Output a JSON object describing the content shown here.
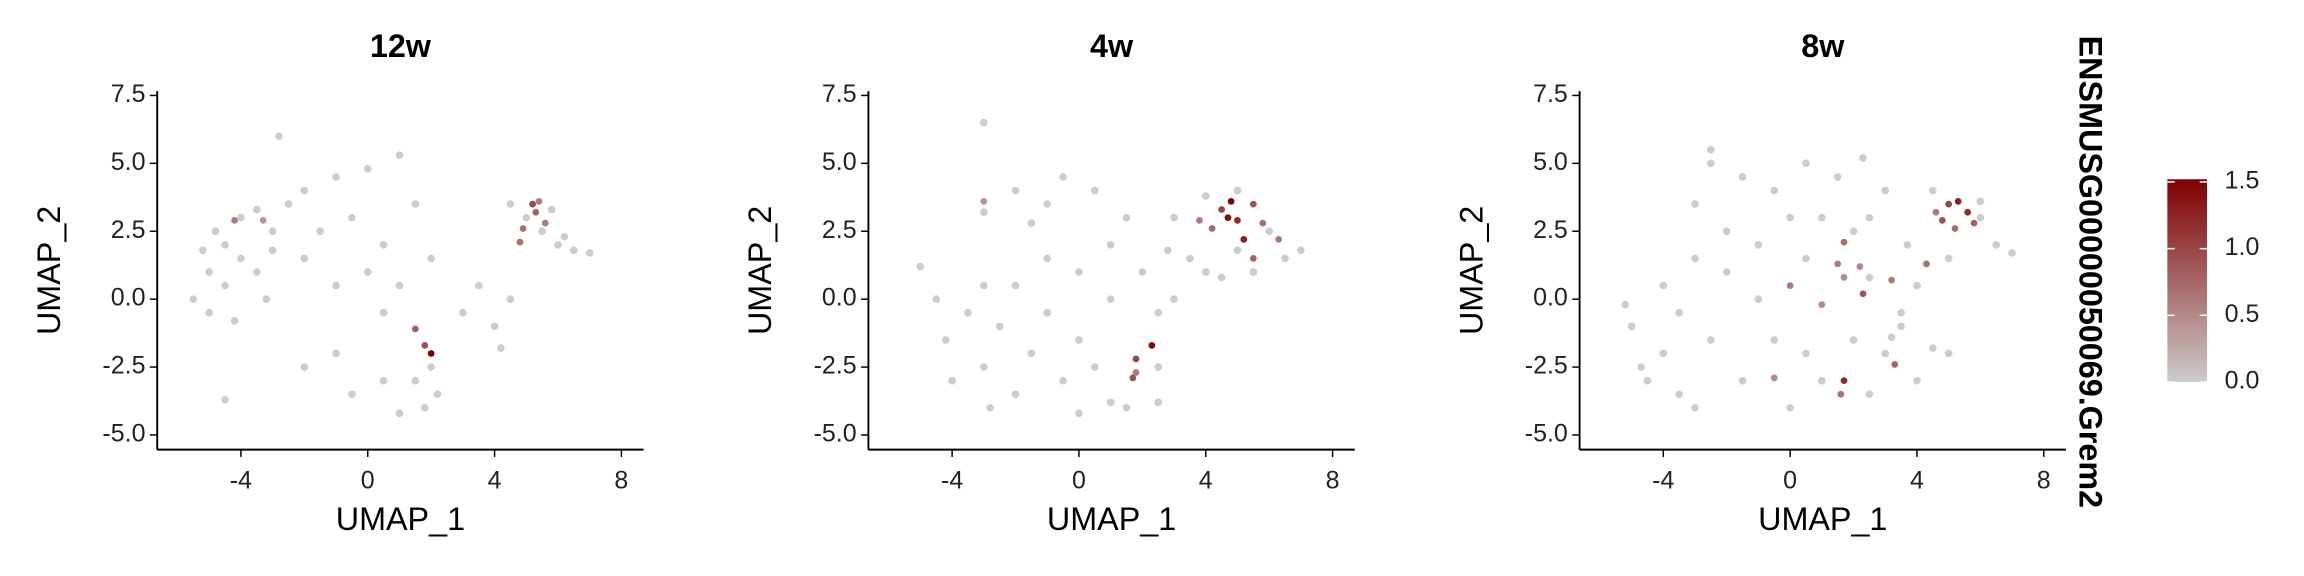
{
  "chart_data": [
    {
      "type": "scatter",
      "title": "12w",
      "x_label": "UMAP_1",
      "y_label": "UMAP_2",
      "xlim": [
        -6.64,
        8.7
      ],
      "ylim": [
        -5.54,
        7.66
      ],
      "xticks": [
        -4,
        0,
        4,
        8
      ],
      "yticks": [
        7.5,
        {
          "value": 5,
          "label": "5.0"
        },
        2.5,
        {
          "value": 0,
          "label": "0.0"
        },
        -2.5,
        {
          "value": -5,
          "label": "-5.0"
        }
      ],
      "series": [
        {
          "name": "12w",
          "x": [
            -5.5,
            -5,
            -4.5,
            -4,
            -3.5,
            -3,
            -5,
            -4.5,
            -4,
            -3.5,
            -3,
            -4.8,
            -5.2,
            -4.2,
            -3.2,
            -2.5,
            -2,
            -1,
            0,
            1,
            -1.5,
            -0.5,
            0.5,
            1.5,
            2,
            1,
            0,
            -1,
            -2,
            -2.8,
            0.5,
            -2,
            -4.5,
            -1,
            0.5,
            1,
            1.5,
            2,
            2.2,
            1.8,
            3,
            3.5,
            4.2,
            4.5,
            5,
            5.5,
            6,
            6.5,
            7,
            4.5,
            5.8,
            6.2,
            4,
            -0.5,
            -4.2,
            -3.3,
            5.2,
            5.3,
            4.9,
            5.6,
            4.8,
            1.5,
            1.8,
            2.0,
            5.4
          ],
          "y": [
            0,
            1,
            2,
            3,
            3.3,
            2.5,
            -0.5,
            0.5,
            1.5,
            1,
            1.8,
            2.5,
            1.8,
            -0.8,
            0,
            3.5,
            4,
            4.5,
            4.8,
            5.3,
            2.5,
            3,
            2,
            3.5,
            1.5,
            0.5,
            1,
            0.5,
            1.5,
            6,
            -0.5,
            -2.5,
            -3.7,
            -2,
            -3,
            -4.2,
            -3,
            -2.5,
            -3.5,
            -4,
            -0.5,
            0.5,
            -1.8,
            0,
            3,
            2.5,
            2,
            1.8,
            1.7,
            3.5,
            3.3,
            2.3,
            -1,
            -3.5,
            2.9,
            2.9,
            3.5,
            3.2,
            2.6,
            2.8,
            2.1,
            -1.1,
            -1.7,
            -2.0,
            3.6
          ],
          "values": [
            0,
            0,
            0,
            0,
            0,
            0,
            0,
            0,
            0,
            0,
            0,
            0,
            0,
            0,
            0,
            0,
            0,
            0,
            0,
            0,
            0,
            0,
            0,
            0,
            0,
            0,
            0,
            0,
            0,
            0,
            0,
            0,
            0,
            0,
            0,
            0,
            0,
            0,
            0,
            0,
            0,
            0,
            0,
            0,
            0,
            0,
            0,
            0,
            0,
            0,
            0,
            0,
            0,
            0,
            0.6,
            0.4,
            1.0,
            0.8,
            0.7,
            0.6,
            0.7,
            0.8,
            0.9,
            1.5,
            0.6
          ]
        }
      ]
    },
    {
      "type": "scatter",
      "title": "4w",
      "x_label": "UMAP_1",
      "y_label": "UMAP_2",
      "xlim": [
        -6.64,
        8.7
      ],
      "ylim": [
        -5.54,
        7.66
      ],
      "xticks": [
        -4,
        0,
        4,
        8
      ],
      "yticks": [
        7.5,
        {
          "value": 5,
          "label": "5.0"
        },
        2.5,
        {
          "value": 0,
          "label": "0.0"
        },
        -2.5,
        {
          "value": -5,
          "label": "-5.0"
        }
      ],
      "series": [
        {
          "name": "4w",
          "x": [
            -4.2,
            -4,
            -3.5,
            -3,
            -2.5,
            -2,
            -1.5,
            -1,
            -0.5,
            0,
            0.5,
            1,
            1.5,
            2.5,
            2.5,
            1,
            0,
            -1,
            -2,
            -3,
            -1.5,
            -1,
            -0.5,
            0.5,
            -2,
            -3,
            1,
            2,
            2.5,
            3,
            3,
            3.5,
            4,
            4.5,
            5,
            5.5,
            6,
            6.5,
            7,
            4,
            5,
            -3,
            -5,
            -4.5,
            0,
            -2.8,
            2.8,
            1.5,
            3.8,
            4.2,
            4.5,
            4.8,
            5.0,
            5.2,
            5.5,
            5.8,
            6.3,
            5.5,
            4.7,
            2.3,
            1.8,
            1.7,
            1.8,
            -3.0
          ],
          "y": [
            -1.5,
            -3,
            -0.5,
            -2.5,
            -1,
            -3.5,
            -2,
            -0.5,
            -3,
            -1.5,
            -2.5,
            -3.8,
            -4,
            -3.8,
            -2.5,
            0,
            1,
            1.5,
            0.5,
            0.5,
            2.8,
            3.5,
            4.5,
            4,
            4,
            3.2,
            2,
            1,
            -0.5,
            0,
            3,
            1.5,
            1,
            0.8,
            1.8,
            1,
            2.5,
            1.5,
            1.8,
            3.8,
            4,
            6.5,
            1.2,
            0,
            -4.2,
            -4,
            1.8,
            3,
            2.9,
            2.6,
            3.3,
            3.6,
            2.9,
            2.2,
            3.5,
            2.8,
            2.2,
            1.5,
            3.0,
            -1.7,
            -2.2,
            -2.9,
            -2.7,
            3.6
          ],
          "values": [
            0,
            0,
            0,
            0,
            0,
            0,
            0,
            0,
            0,
            0,
            0,
            0,
            0,
            0,
            0,
            0,
            0,
            0,
            0,
            0,
            0,
            0,
            0,
            0,
            0,
            0,
            0,
            0,
            0,
            0,
            0,
            0,
            0,
            0,
            0,
            0,
            0,
            0,
            0,
            0,
            0,
            0,
            0,
            0,
            0,
            0,
            0,
            0,
            0.6,
            0.7,
            1.0,
            1.5,
            1.2,
            1.3,
            0.9,
            0.7,
            0.6,
            0.8,
            1.4,
            1.5,
            1.0,
            0.9,
            0.6,
            0.4
          ]
        }
      ]
    },
    {
      "type": "scatter",
      "title": "8w",
      "x_label": "UMAP_1",
      "y_label": "UMAP_2",
      "xlim": [
        -6.64,
        8.7
      ],
      "ylim": [
        -5.54,
        7.66
      ],
      "xticks": [
        -4,
        0,
        4,
        8
      ],
      "yticks": [
        7.5,
        {
          "value": 5,
          "label": "5.0"
        },
        2.5,
        {
          "value": 0,
          "label": "0.0"
        },
        -2.5,
        {
          "value": -5,
          "label": "-5.0"
        }
      ],
      "series": [
        {
          "name": "8w",
          "x": [
            -4,
            -4.5,
            -3.5,
            -3,
            -2.5,
            -2,
            -1.5,
            -1,
            -0.5,
            0,
            0.5,
            1,
            2,
            2.5,
            3,
            3.5,
            4,
            4.5,
            5,
            3.5,
            4,
            2.5,
            0.5,
            -1,
            -2,
            -3,
            -3,
            -2.5,
            -1.5,
            -0.5,
            0.5,
            1.5,
            2.3,
            1,
            2.5,
            3,
            2,
            0,
            -4,
            -5,
            -5.2,
            -2.5,
            5,
            6,
            6.5,
            7,
            6,
            4.5,
            3.7,
            -4.7,
            3.2,
            -3.5,
            5,
            5.3,
            5.6,
            4.8,
            5.2,
            5.8,
            4.6,
            1.7,
            1.5,
            1.7,
            2.2,
            3.2,
            4.3,
            0,
            2.3,
            1,
            3.3,
            1.7,
            1.6,
            -0.5
          ],
          "y": [
            -2,
            -3,
            -0.5,
            -4,
            -1.5,
            1,
            -3,
            0,
            -1.5,
            -4,
            -2,
            -3,
            -1.5,
            -3.5,
            -2,
            -1,
            -3,
            -1.8,
            -2,
            -0.5,
            0.5,
            0.8,
            1.5,
            2,
            2.5,
            1.5,
            3.5,
            5,
            4.5,
            4,
            5,
            4.5,
            5.2,
            3,
            3,
            4,
            2.5,
            3,
            0.5,
            -1,
            -0.2,
            5.5,
            1.5,
            3,
            2,
            1.7,
            3.6,
            4,
            2,
            -2.5,
            -1.4,
            -3.5,
            3.5,
            3.6,
            3.2,
            2.9,
            2.6,
            2.8,
            3.2,
            2.1,
            1.3,
            0.8,
            1.2,
            0.7,
            1.3,
            0.5,
            0.2,
            -0.2,
            -2.4,
            -3.0,
            -3.5,
            -2.9
          ],
          "values": [
            0,
            0,
            0,
            0,
            0,
            0,
            0,
            0,
            0,
            0,
            0,
            0,
            0,
            0,
            0,
            0,
            0,
            0,
            0,
            0,
            0,
            0,
            0,
            0,
            0,
            0,
            0,
            0,
            0,
            0,
            0,
            0,
            0,
            0,
            0,
            0,
            0,
            0,
            0,
            0,
            0,
            0,
            0,
            0,
            0,
            0,
            0,
            0,
            0,
            0,
            0,
            0,
            1.0,
            1.3,
            1.2,
            0.9,
            0.7,
            0.8,
            0.6,
            0.7,
            0.6,
            0.5,
            0.5,
            0.6,
            0.7,
            0.6,
            0.9,
            0.5,
            0.8,
            1.2,
            0.7,
            0.5
          ]
        }
      ]
    }
  ],
  "colorbar": {
    "title": "ENSMUSG00000050069.Grem2",
    "lim": [
      0,
      1.52
    ],
    "ticks": [
      {
        "value": 0,
        "label": "0.0"
      },
      0.5,
      {
        "value": 1,
        "label": "1.0"
      },
      1.5
    ],
    "low_color": "#cccccc",
    "high_color": "#7f0000"
  }
}
